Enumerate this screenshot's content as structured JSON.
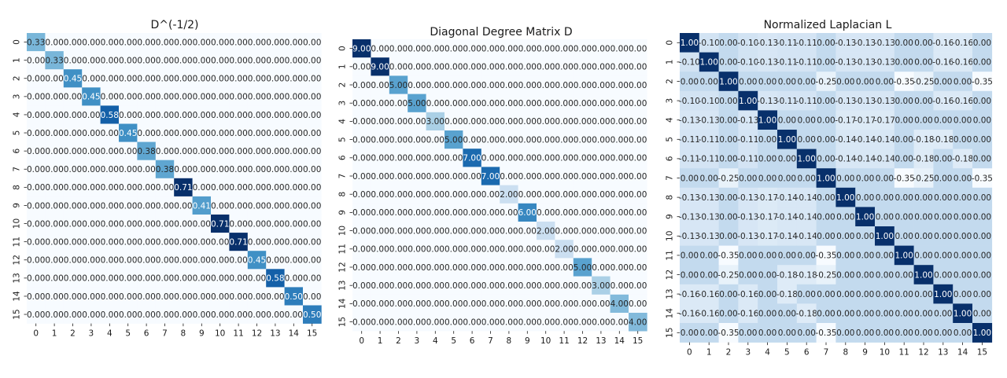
{
  "figure": {
    "type": "heatmap-panels",
    "colormap": "Blues",
    "grid": false
  },
  "chart_data": [
    {
      "type": "heatmap",
      "title": "D^(-1/2)",
      "xlabel": "",
      "ylabel": "",
      "x_ticks": [
        "0",
        "1",
        "2",
        "3",
        "4",
        "5",
        "6",
        "7",
        "8",
        "9",
        "10",
        "11",
        "12",
        "13",
        "14",
        "15"
      ],
      "y_ticks": [
        "0",
        "1",
        "2",
        "3",
        "4",
        "5",
        "6",
        "7",
        "8",
        "9",
        "10",
        "11",
        "12",
        "13",
        "14",
        "15"
      ],
      "value_range": [
        0,
        0.71
      ],
      "diagonal": [
        0.33,
        0.33,
        0.45,
        0.45,
        0.58,
        0.45,
        0.38,
        0.38,
        0.71,
        0.41,
        0.71,
        0.71,
        0.45,
        0.58,
        0.5,
        0.5
      ],
      "matrix": [
        [
          0.33,
          0,
          0,
          0,
          0,
          0,
          0,
          0,
          0,
          0,
          0,
          0,
          0,
          0,
          0,
          0
        ],
        [
          0,
          0.33,
          0,
          0,
          0,
          0,
          0,
          0,
          0,
          0,
          0,
          0,
          0,
          0,
          0,
          0
        ],
        [
          0,
          0,
          0.45,
          0,
          0,
          0,
          0,
          0,
          0,
          0,
          0,
          0,
          0,
          0,
          0,
          0
        ],
        [
          0,
          0,
          0,
          0.45,
          0,
          0,
          0,
          0,
          0,
          0,
          0,
          0,
          0,
          0,
          0,
          0
        ],
        [
          0,
          0,
          0,
          0,
          0.58,
          0,
          0,
          0,
          0,
          0,
          0,
          0,
          0,
          0,
          0,
          0
        ],
        [
          0,
          0,
          0,
          0,
          0,
          0.45,
          0,
          0,
          0,
          0,
          0,
          0,
          0,
          0,
          0,
          0
        ],
        [
          0,
          0,
          0,
          0,
          0,
          0,
          0.38,
          0,
          0,
          0,
          0,
          0,
          0,
          0,
          0,
          0
        ],
        [
          0,
          0,
          0,
          0,
          0,
          0,
          0,
          0.38,
          0,
          0,
          0,
          0,
          0,
          0,
          0,
          0
        ],
        [
          0,
          0,
          0,
          0,
          0,
          0,
          0,
          0,
          0.71,
          0,
          0,
          0,
          0,
          0,
          0,
          0
        ],
        [
          0,
          0,
          0,
          0,
          0,
          0,
          0,
          0,
          0,
          0.41,
          0,
          0,
          0,
          0,
          0,
          0
        ],
        [
          0,
          0,
          0,
          0,
          0,
          0,
          0,
          0,
          0,
          0,
          0.71,
          0,
          0,
          0,
          0,
          0
        ],
        [
          0,
          0,
          0,
          0,
          0,
          0,
          0,
          0,
          0,
          0,
          0,
          0.71,
          0,
          0,
          0,
          0
        ],
        [
          0,
          0,
          0,
          0,
          0,
          0,
          0,
          0,
          0,
          0,
          0,
          0,
          0.45,
          0,
          0,
          0
        ],
        [
          0,
          0,
          0,
          0,
          0,
          0,
          0,
          0,
          0,
          0,
          0,
          0,
          0,
          0.58,
          0,
          0
        ],
        [
          0,
          0,
          0,
          0,
          0,
          0,
          0,
          0,
          0,
          0,
          0,
          0,
          0,
          0,
          0.5,
          0
        ],
        [
          0,
          0,
          0,
          0,
          0,
          0,
          0,
          0,
          0,
          0,
          0,
          0,
          0,
          0,
          0,
          0.5
        ]
      ]
    },
    {
      "type": "heatmap",
      "title": "Diagonal Degree Matrix D",
      "xlabel": "",
      "ylabel": "",
      "x_ticks": [
        "0",
        "1",
        "2",
        "3",
        "4",
        "5",
        "6",
        "7",
        "8",
        "9",
        "10",
        "11",
        "12",
        "13",
        "14",
        "15"
      ],
      "y_ticks": [
        "0",
        "1",
        "2",
        "3",
        "4",
        "5",
        "6",
        "7",
        "8",
        "9",
        "10",
        "11",
        "12",
        "13",
        "14",
        "15"
      ],
      "value_range": [
        0,
        9
      ],
      "diagonal": [
        9,
        9,
        5,
        5,
        3,
        5,
        7,
        7,
        2,
        6,
        2,
        2,
        5,
        3,
        4,
        4
      ],
      "matrix": [
        [
          9,
          0,
          0,
          0,
          0,
          0,
          0,
          0,
          0,
          0,
          0,
          0,
          0,
          0,
          0,
          0
        ],
        [
          0,
          9,
          0,
          0,
          0,
          0,
          0,
          0,
          0,
          0,
          0,
          0,
          0,
          0,
          0,
          0
        ],
        [
          0,
          0,
          5,
          0,
          0,
          0,
          0,
          0,
          0,
          0,
          0,
          0,
          0,
          0,
          0,
          0
        ],
        [
          0,
          0,
          0,
          5,
          0,
          0,
          0,
          0,
          0,
          0,
          0,
          0,
          0,
          0,
          0,
          0
        ],
        [
          0,
          0,
          0,
          0,
          3,
          0,
          0,
          0,
          0,
          0,
          0,
          0,
          0,
          0,
          0,
          0
        ],
        [
          0,
          0,
          0,
          0,
          0,
          5,
          0,
          0,
          0,
          0,
          0,
          0,
          0,
          0,
          0,
          0
        ],
        [
          0,
          0,
          0,
          0,
          0,
          0,
          7,
          0,
          0,
          0,
          0,
          0,
          0,
          0,
          0,
          0
        ],
        [
          0,
          0,
          0,
          0,
          0,
          0,
          0,
          7,
          0,
          0,
          0,
          0,
          0,
          0,
          0,
          0
        ],
        [
          0,
          0,
          0,
          0,
          0,
          0,
          0,
          0,
          2,
          0,
          0,
          0,
          0,
          0,
          0,
          0
        ],
        [
          0,
          0,
          0,
          0,
          0,
          0,
          0,
          0,
          0,
          6,
          0,
          0,
          0,
          0,
          0,
          0
        ],
        [
          0,
          0,
          0,
          0,
          0,
          0,
          0,
          0,
          0,
          0,
          2,
          0,
          0,
          0,
          0,
          0
        ],
        [
          0,
          0,
          0,
          0,
          0,
          0,
          0,
          0,
          0,
          0,
          0,
          2,
          0,
          0,
          0,
          0
        ],
        [
          0,
          0,
          0,
          0,
          0,
          0,
          0,
          0,
          0,
          0,
          0,
          0,
          5,
          0,
          0,
          0
        ],
        [
          0,
          0,
          0,
          0,
          0,
          0,
          0,
          0,
          0,
          0,
          0,
          0,
          0,
          3,
          0,
          0
        ],
        [
          0,
          0,
          0,
          0,
          0,
          0,
          0,
          0,
          0,
          0,
          0,
          0,
          0,
          0,
          4,
          0
        ],
        [
          0,
          0,
          0,
          0,
          0,
          0,
          0,
          0,
          0,
          0,
          0,
          0,
          0,
          0,
          0,
          4
        ]
      ]
    },
    {
      "type": "heatmap",
      "title": "Normalized Laplacian L",
      "xlabel": "",
      "ylabel": "",
      "x_ticks": [
        "0",
        "1",
        "2",
        "3",
        "4",
        "5",
        "6",
        "7",
        "8",
        "9",
        "10",
        "11",
        "12",
        "13",
        "14",
        "15"
      ],
      "y_ticks": [
        "0",
        "1",
        "2",
        "3",
        "4",
        "5",
        "6",
        "7",
        "8",
        "9",
        "10",
        "11",
        "12",
        "13",
        "14",
        "15"
      ],
      "value_range": [
        -0.35,
        1.0
      ],
      "matrix": [
        [
          1.0,
          -0.1,
          0.0,
          -0.1,
          -0.13,
          -0.11,
          -0.11,
          0.0,
          -0.13,
          -0.13,
          -0.13,
          0.0,
          0.0,
          -0.16,
          -0.16,
          0.0
        ],
        [
          -0.1,
          1.0,
          0.0,
          -0.1,
          -0.13,
          -0.11,
          -0.11,
          0.0,
          -0.13,
          -0.13,
          -0.13,
          0.0,
          0.0,
          -0.16,
          -0.16,
          0.0
        ],
        [
          0.0,
          0.0,
          1.0,
          0.0,
          0.0,
          0.0,
          0.0,
          -0.25,
          0.0,
          0.0,
          0.0,
          -0.35,
          -0.25,
          0.0,
          0.0,
          -0.35
        ],
        [
          -0.1,
          -0.1,
          0.0,
          1.0,
          -0.13,
          -0.11,
          -0.11,
          0.0,
          -0.13,
          -0.13,
          -0.13,
          0.0,
          0.0,
          -0.16,
          -0.16,
          0.0
        ],
        [
          -0.13,
          -0.13,
          0.0,
          -0.13,
          1.0,
          0.0,
          0.0,
          0.0,
          -0.17,
          -0.17,
          -0.17,
          0.0,
          0.0,
          0.0,
          0.0,
          0.0
        ],
        [
          -0.11,
          -0.11,
          0.0,
          -0.11,
          0.0,
          1.0,
          0.0,
          0.0,
          -0.14,
          -0.14,
          -0.14,
          0.0,
          -0.18,
          -0.18,
          0.0,
          0.0
        ],
        [
          -0.11,
          -0.11,
          0.0,
          -0.11,
          0.0,
          0.0,
          1.0,
          0.0,
          -0.14,
          -0.14,
          -0.14,
          0.0,
          -0.18,
          0.0,
          -0.18,
          0.0
        ],
        [
          0.0,
          0.0,
          -0.25,
          0.0,
          0.0,
          0.0,
          0.0,
          1.0,
          0.0,
          0.0,
          0.0,
          -0.35,
          -0.25,
          0.0,
          0.0,
          -0.35
        ],
        [
          -0.13,
          -0.13,
          0.0,
          -0.13,
          -0.17,
          -0.14,
          -0.14,
          0.0,
          1.0,
          0.0,
          0.0,
          0.0,
          0.0,
          0.0,
          0.0,
          0.0
        ],
        [
          -0.13,
          -0.13,
          0.0,
          -0.13,
          -0.17,
          -0.14,
          -0.14,
          0.0,
          0.0,
          1.0,
          0.0,
          0.0,
          0.0,
          0.0,
          0.0,
          0.0
        ],
        [
          -0.13,
          -0.13,
          0.0,
          -0.13,
          -0.17,
          -0.14,
          -0.14,
          0.0,
          0.0,
          0.0,
          1.0,
          0.0,
          0.0,
          0.0,
          0.0,
          0.0
        ],
        [
          0.0,
          0.0,
          -0.35,
          0.0,
          0.0,
          0.0,
          0.0,
          -0.35,
          0.0,
          0.0,
          0.0,
          1.0,
          0.0,
          0.0,
          0.0,
          0.0
        ],
        [
          0.0,
          0.0,
          -0.25,
          0.0,
          0.0,
          -0.18,
          -0.18,
          -0.25,
          0.0,
          0.0,
          0.0,
          0.0,
          1.0,
          0.0,
          0.0,
          0.0
        ],
        [
          -0.16,
          -0.16,
          0.0,
          -0.16,
          0.0,
          -0.18,
          0.0,
          0.0,
          0.0,
          0.0,
          0.0,
          0.0,
          0.0,
          1.0,
          0.0,
          0.0
        ],
        [
          -0.16,
          -0.16,
          0.0,
          -0.16,
          0.0,
          0.0,
          -0.18,
          0.0,
          0.0,
          0.0,
          0.0,
          0.0,
          0.0,
          0.0,
          1.0,
          0.0
        ],
        [
          0.0,
          0.0,
          -0.35,
          0.0,
          0.0,
          0.0,
          0.0,
          -0.35,
          0.0,
          0.0,
          0.0,
          0.0,
          0.0,
          0.0,
          0.0,
          1.0
        ]
      ]
    }
  ]
}
